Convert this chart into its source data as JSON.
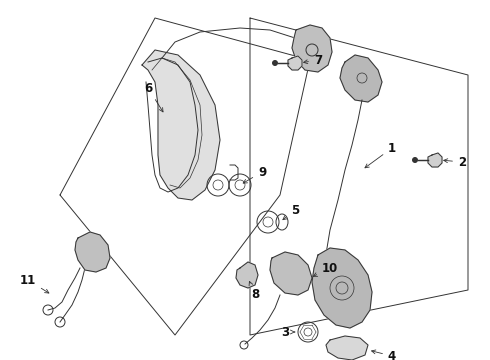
{
  "bg_color": "#ffffff",
  "line_color": "#333333",
  "label_color": "#111111",
  "fig_w": 4.9,
  "fig_h": 3.6,
  "dpi": 100,
  "lw": 0.7,
  "callout_fs": 8.5
}
